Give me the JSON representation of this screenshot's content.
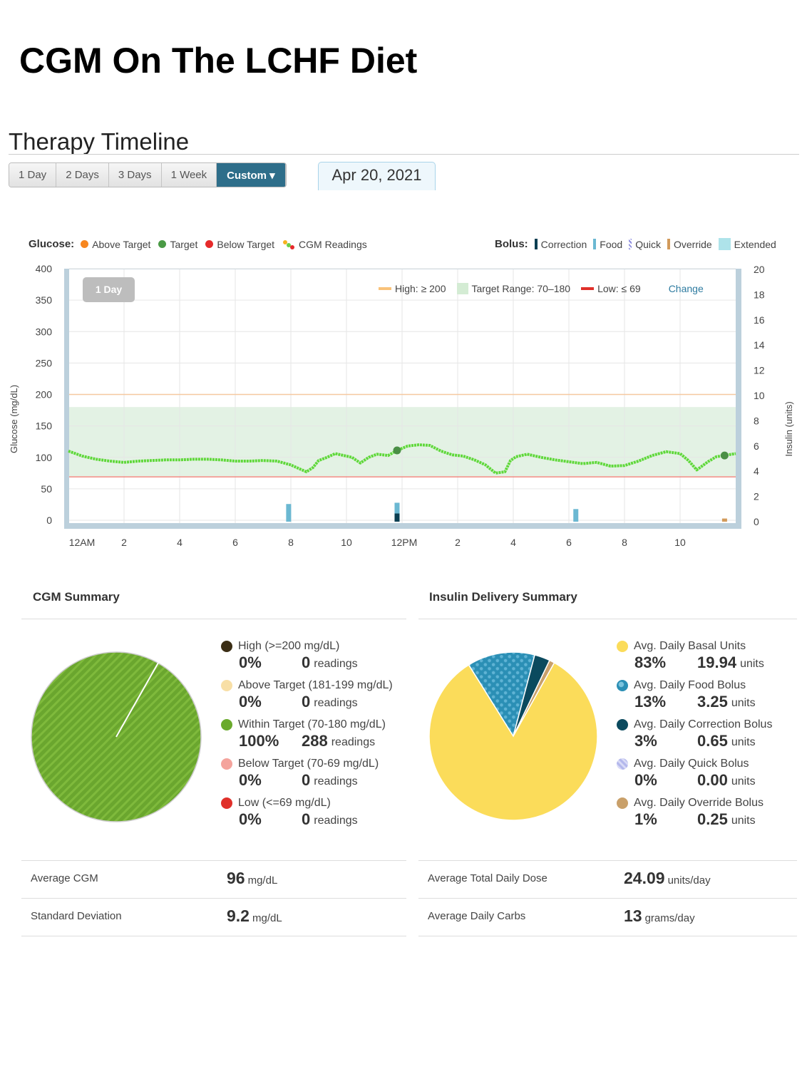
{
  "page_title": "CGM On The LCHF Diet",
  "section_title": "Therapy Timeline",
  "range_buttons": [
    {
      "label": "1 Day"
    },
    {
      "label": "2 Days"
    },
    {
      "label": "3 Days"
    },
    {
      "label": "1 Week"
    },
    {
      "label": "Custom ▾",
      "active": true
    }
  ],
  "date": "Apr 20, 2021",
  "glucose_legend": {
    "title": "Glucose:",
    "items": [
      {
        "label": "Above Target",
        "color": "#f7861f"
      },
      {
        "label": "Target",
        "color": "#4a9a45"
      },
      {
        "label": "Below Target",
        "color": "#e62a2a"
      },
      {
        "label": "CGM Readings"
      }
    ]
  },
  "bolus_legend": {
    "title": "Bolus:",
    "items": [
      {
        "label": "Correction",
        "color": "#0b3f52"
      },
      {
        "label": "Food",
        "color": "#6bb8d2"
      },
      {
        "label": "Quick",
        "color": "#8f8fe0"
      },
      {
        "label": "Override",
        "color": "#d29a5b"
      },
      {
        "label": "Extended",
        "color": "#aee3ea"
      }
    ]
  },
  "chart_inner": {
    "day_badge": "1 Day",
    "high_label": "High: ≥ 200",
    "target_label": "Target Range: 70–180",
    "low_label": "Low: ≤ 69",
    "change_link": "Change"
  },
  "chart_data": {
    "type": "line",
    "ylabel": "Glucose (mg/dL)",
    "y2label": "Insulin (units)",
    "ylim": [
      0,
      400
    ],
    "y2lim": [
      0,
      20
    ],
    "yticks": [
      "400",
      "350",
      "300",
      "250",
      "200",
      "150",
      "100",
      "50",
      "0"
    ],
    "y2ticks": [
      "20",
      "18",
      "16",
      "14",
      "12",
      "10",
      "8",
      "6",
      "4",
      "2",
      "0"
    ],
    "xticks": [
      "12AM",
      "2",
      "4",
      "6",
      "8",
      "10",
      "12PM",
      "2",
      "4",
      "6",
      "8",
      "10"
    ],
    "high": 200,
    "target_range": [
      70,
      180
    ],
    "low": 69,
    "glucose": {
      "hours": [
        0,
        0.5,
        1,
        1.5,
        2,
        2.5,
        3,
        3.5,
        4,
        4.5,
        5,
        5.5,
        6,
        6.5,
        7,
        7.5,
        8,
        8.3,
        8.56,
        8.8,
        9,
        9.3,
        9.6,
        10,
        10.2,
        10.5,
        10.8,
        11.1,
        11.5,
        11.82,
        12.2,
        12.6,
        13,
        13.4,
        13.8,
        14.2,
        14.6,
        15,
        15.36,
        15.7,
        15.9,
        16.1,
        16.5,
        17,
        17.5,
        18,
        18.5,
        19,
        19.5,
        20,
        20.5,
        21,
        21.5,
        22,
        22.3,
        22.6,
        23,
        23.3,
        23.6,
        24
      ],
      "values": [
        110,
        102,
        97,
        94,
        92,
        94,
        95,
        96,
        96,
        97,
        97,
        96,
        94,
        94,
        95,
        94,
        88,
        82,
        77,
        84,
        95,
        100,
        106,
        102,
        100,
        91,
        100,
        105,
        103,
        111,
        118,
        120,
        119,
        110,
        104,
        102,
        96,
        88,
        75,
        77,
        95,
        101,
        105,
        100,
        96,
        93,
        90,
        92,
        86,
        87,
        94,
        103,
        109,
        106,
        95,
        80,
        93,
        101,
        103,
        106
      ]
    },
    "glucose_markers": [
      {
        "hour": 11.82,
        "value": 111
      },
      {
        "hour": 23.6,
        "value": 103
      }
    ],
    "boluses": [
      {
        "hour": 7.92,
        "food": 1.4,
        "correction": 0
      },
      {
        "hour": 11.82,
        "food": 0.85,
        "correction": 0.65
      },
      {
        "hour": 18.25,
        "food": 1.0,
        "correction": 0
      },
      {
        "hour": 23.6,
        "override": 0.25
      }
    ]
  },
  "cgm_summary": {
    "title": "CGM Summary",
    "items": [
      {
        "label": "High (>=200 mg/dL)",
        "pct": "0%",
        "count": "0",
        "unit": "readings",
        "color": "#3b2e15"
      },
      {
        "label": "Above Target (181-199 mg/dL)",
        "pct": "0%",
        "count": "0",
        "unit": "readings",
        "color": "#f8dfa6"
      },
      {
        "label": "Within Target (70-180 mg/dL)",
        "pct": "100%",
        "count": "288",
        "unit": "readings",
        "color": "#6aaa2c"
      },
      {
        "label": "Below Target (70-69 mg/dL)",
        "pct": "0%",
        "count": "0",
        "unit": "readings",
        "color": "#f4a39c"
      },
      {
        "label": "Low (<=69 mg/dL)",
        "pct": "0%",
        "count": "0",
        "unit": "readings",
        "color": "#e0302a"
      }
    ],
    "pie": [
      {
        "name": "Within Target",
        "percent": 100
      }
    ],
    "stats": [
      {
        "label": "Average CGM",
        "value": "96",
        "unit": "mg/dL"
      },
      {
        "label": "Standard Deviation",
        "value": "9.2",
        "unit": "mg/dL"
      }
    ]
  },
  "insulin_summary": {
    "title": "Insulin Delivery Summary",
    "items": [
      {
        "label": "Avg. Daily Basal Units",
        "pct": "83%",
        "count": "19.94",
        "unit": "units",
        "color": "#fbdc5a"
      },
      {
        "label": "Avg. Daily Food Bolus",
        "pct": "13%",
        "count": "3.25",
        "unit": "units",
        "color": "#2b8fb5"
      },
      {
        "label": "Avg. Daily Correction Bolus",
        "pct": "3%",
        "count": "0.65",
        "unit": "units",
        "color": "#0b4a5e"
      },
      {
        "label": "Avg. Daily Quick Bolus",
        "pct": "0%",
        "count": "0.00",
        "unit": "units",
        "color": "#b4b8ec"
      },
      {
        "label": "Avg. Daily Override Bolus",
        "pct": "1%",
        "count": "0.25",
        "unit": "units",
        "color": "#c9a06a"
      }
    ],
    "pie": [
      {
        "name": "Food",
        "percent": 13,
        "color": "#2b8fb5"
      },
      {
        "name": "Correction",
        "percent": 3,
        "color": "#0b4a5e"
      },
      {
        "name": "Override",
        "percent": 1,
        "color": "#c9a06a"
      },
      {
        "name": "Basal",
        "percent": 83,
        "color": "#fbdc5a"
      }
    ],
    "stats": [
      {
        "label": "Average Total Daily Dose",
        "value": "24.09",
        "unit": "units/day"
      },
      {
        "label": "Average Daily Carbs",
        "value": "13",
        "unit": "grams/day"
      }
    ]
  }
}
